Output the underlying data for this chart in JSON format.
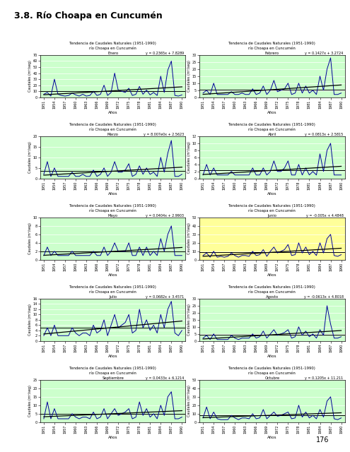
{
  "title": "3.8. Río Choapa en Cuncumén",
  "page_number": "176",
  "background_color": "#ffffff",
  "plot_bg_colors": {
    "Enero": "#ccffcc",
    "Febrero": "#ccffcc",
    "Marzo": "#ccffcc",
    "Abril": "#ccffcc",
    "Mayo": "#ccffcc",
    "Junio": "#ffff99",
    "Julio": "#ccffcc",
    "Agosto": "#ccffcc",
    "Septiembre": "#ccffcc",
    "Octubre": "#ccffcc"
  },
  "subtitle_line1": "Tendencia de Caudales Naturales (1951-1990)",
  "subtitle_line2": "río Choapa en Cuncumén",
  "xlabel": "Años",
  "ylabel": "Caudales (m³/seg)",
  "months": [
    "Enero",
    "Febrero",
    "Marzo",
    "Abril",
    "Mayo",
    "Junio",
    "Julio",
    "Agosto",
    "Septiembre",
    "Octubre"
  ],
  "equations": {
    "Enero": "y = 0.2365x + 7.8289",
    "Febrero": "y = 0.1427x + 3.2724",
    "Marzo": "y = 8.007e0x + 2.5623",
    "Abril": "y = 0.0813x + 2.5815",
    "Mayo": "y = 0.0404x + 2.9903",
    "Junio": "y = -0.005x + 4.4848",
    "Julio": "y = 0.0682x + 3.4571",
    "Agosto": "y = -0.0613x + 4.8018",
    "Septiembre": "y = 0.0433x + 6.1214",
    "Octubre": "y = 0.1205x + 11.211"
  },
  "ylims": {
    "Enero": [
      0,
      70
    ],
    "Febrero": [
      0,
      30
    ],
    "Marzo": [
      0,
      20
    ],
    "Abril": [
      0,
      12
    ],
    "Mayo": [
      0,
      10
    ],
    "Junio": [
      0,
      50
    ],
    "Julio": [
      0,
      16
    ],
    "Agosto": [
      0,
      30
    ],
    "Septiembre": [
      0,
      25
    ],
    "Octubre": [
      0,
      50
    ]
  },
  "yticks": {
    "Enero": [
      0,
      10,
      20,
      30,
      40,
      50,
      60,
      70
    ],
    "Febrero": [
      0,
      5,
      10,
      15,
      20,
      25,
      30
    ],
    "Marzo": [
      0,
      5,
      10,
      15,
      20
    ],
    "Abril": [
      0,
      2,
      4,
      6,
      8,
      10,
      12
    ],
    "Mayo": [
      0,
      2,
      4,
      6,
      8,
      10
    ],
    "Junio": [
      0,
      10,
      20,
      30,
      40,
      50
    ],
    "Julio": [
      0,
      2,
      4,
      6,
      8,
      10,
      12,
      14,
      16
    ],
    "Agosto": [
      0,
      5,
      10,
      15,
      20,
      25,
      30
    ],
    "Septiembre": [
      0,
      5,
      10,
      15,
      20,
      25
    ],
    "Octubre": [
      0,
      10,
      20,
      30,
      40,
      50
    ]
  },
  "years": [
    1951,
    1952,
    1953,
    1954,
    1955,
    1956,
    1957,
    1958,
    1959,
    1960,
    1961,
    1962,
    1963,
    1964,
    1965,
    1966,
    1967,
    1968,
    1969,
    1970,
    1971,
    1972,
    1973,
    1974,
    1975,
    1976,
    1977,
    1978,
    1979,
    1980,
    1981,
    1982,
    1983,
    1984,
    1985,
    1986,
    1987,
    1988,
    1989,
    1990
  ],
  "data": {
    "Enero": [
      5,
      8,
      2,
      30,
      5,
      3,
      2,
      3,
      7,
      4,
      2,
      5,
      2,
      3,
      10,
      3,
      5,
      20,
      3,
      8,
      40,
      12,
      10,
      8,
      15,
      3,
      5,
      18,
      5,
      12,
      4,
      8,
      3,
      35,
      8,
      45,
      60,
      3,
      2,
      4
    ],
    "Febrero": [
      3,
      5,
      2,
      10,
      2,
      2,
      2,
      2,
      4,
      2,
      2,
      3,
      2,
      2,
      6,
      2,
      3,
      8,
      2,
      5,
      12,
      4,
      5,
      6,
      10,
      2,
      3,
      10,
      3,
      8,
      3,
      5,
      2,
      15,
      5,
      20,
      28,
      2,
      2,
      3
    ],
    "Marzo": [
      2,
      8,
      1,
      5,
      1,
      1,
      1,
      1,
      3,
      1,
      1,
      2,
      1,
      1,
      4,
      1,
      2,
      5,
      1,
      3,
      8,
      3,
      3,
      4,
      7,
      1,
      2,
      6,
      2,
      5,
      2,
      3,
      1,
      10,
      3,
      12,
      18,
      1,
      1,
      2
    ],
    "Abril": [
      1,
      4,
      1,
      3,
      1,
      1,
      1,
      1,
      2,
      1,
      1,
      1,
      1,
      1,
      3,
      1,
      1,
      3,
      1,
      2,
      5,
      2,
      2,
      3,
      5,
      1,
      1,
      4,
      1,
      3,
      1,
      2,
      1,
      7,
      2,
      8,
      10,
      1,
      1,
      1
    ],
    "Mayo": [
      1,
      3,
      1,
      2,
      1,
      1,
      1,
      1,
      2,
      1,
      1,
      1,
      1,
      1,
      2,
      1,
      1,
      3,
      1,
      2,
      4,
      2,
      2,
      2,
      4,
      1,
      1,
      3,
      1,
      3,
      1,
      2,
      1,
      5,
      2,
      6,
      8,
      1,
      1,
      1
    ],
    "Junio": [
      5,
      8,
      3,
      10,
      3,
      4,
      3,
      4,
      8,
      5,
      3,
      5,
      5,
      4,
      10,
      5,
      6,
      12,
      4,
      10,
      15,
      8,
      10,
      12,
      18,
      5,
      6,
      20,
      8,
      15,
      6,
      10,
      5,
      20,
      8,
      25,
      30,
      5,
      4,
      6
    ],
    "Julio": [
      2,
      5,
      2,
      6,
      2,
      2,
      2,
      2,
      5,
      3,
      2,
      3,
      3,
      2,
      6,
      3,
      4,
      8,
      2,
      6,
      10,
      5,
      6,
      7,
      10,
      3,
      4,
      12,
      5,
      8,
      4,
      6,
      3,
      10,
      5,
      12,
      15,
      3,
      2,
      4
    ],
    "Agosto": [
      2,
      4,
      1,
      5,
      1,
      1,
      1,
      1,
      4,
      2,
      1,
      2,
      2,
      2,
      5,
      2,
      3,
      7,
      2,
      5,
      8,
      4,
      5,
      6,
      8,
      2,
      3,
      10,
      4,
      7,
      3,
      5,
      2,
      8,
      4,
      25,
      12,
      2,
      2,
      3
    ],
    "Septiembre": [
      2,
      12,
      2,
      8,
      2,
      2,
      2,
      2,
      5,
      3,
      2,
      3,
      3,
      2,
      6,
      2,
      3,
      8,
      2,
      5,
      8,
      4,
      5,
      6,
      8,
      2,
      3,
      12,
      4,
      8,
      3,
      5,
      2,
      10,
      4,
      15,
      18,
      2,
      2,
      3
    ],
    "Octubre": [
      5,
      18,
      4,
      12,
      4,
      3,
      3,
      3,
      8,
      5,
      3,
      5,
      5,
      4,
      10,
      4,
      5,
      15,
      4,
      8,
      12,
      7,
      8,
      10,
      12,
      4,
      5,
      20,
      6,
      12,
      5,
      8,
      4,
      15,
      6,
      25,
      30,
      4,
      3,
      5
    ]
  },
  "xtick_years": [
    1951,
    1954,
    1957,
    1960,
    1963,
    1966,
    1969,
    1972,
    1975,
    1978,
    1981,
    1984,
    1987,
    1990
  ]
}
